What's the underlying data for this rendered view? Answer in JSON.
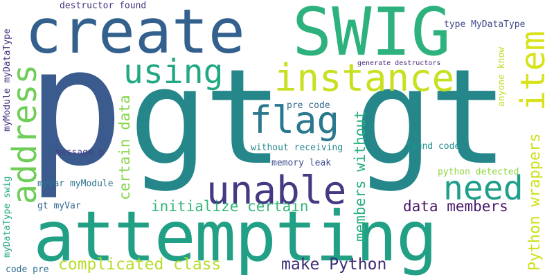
{
  "words": [
    {
      "text": "p",
      "color": "#3b5b8e"
    },
    {
      "text": "gt gt",
      "color": "#25878a"
    },
    {
      "text": "attempting",
      "color": "#21a085"
    },
    {
      "text": "create",
      "color": "#33608d"
    },
    {
      "text": "SWIG",
      "color": "#2db27d"
    },
    {
      "text": "using",
      "color": "#22a884"
    },
    {
      "text": "instance",
      "color": "#c8e020"
    },
    {
      "text": "flag",
      "color": "#2a788e"
    },
    {
      "text": "unable",
      "color": "#443a83"
    },
    {
      "text": "need",
      "color": "#1f9e89"
    },
    {
      "text": "item",
      "color": "#d8e219"
    },
    {
      "text": "address",
      "color": "#6ece58"
    },
    {
      "text": "make Python",
      "color": "#3f2d76"
    },
    {
      "text": "data members",
      "color": "#48186a"
    },
    {
      "text": "complicated class",
      "color": "#b5de2b"
    },
    {
      "text": "initialize certain",
      "color": "#35b779"
    },
    {
      "text": "certain data",
      "color": "#86d549"
    },
    {
      "text": "members without",
      "color": "#29af7f"
    },
    {
      "text": "Python wrappers",
      "color": "#cde11d"
    },
    {
      "text": "destructor found",
      "color": "#46327e"
    },
    {
      "text": "type MyDataType",
      "color": "#3e4989"
    },
    {
      "text": "generate destructors",
      "color": "#472a7a"
    },
    {
      "text": "anyone know",
      "color": "#bddf26"
    },
    {
      "text": "pre code",
      "color": "#31688e"
    },
    {
      "text": "without receiving",
      "color": "#24868e"
    },
    {
      "text": "found code",
      "color": "#20928c"
    },
    {
      "text": "memory leak",
      "color": "#3e4c8a"
    },
    {
      "text": "message p",
      "color": "#423f85"
    },
    {
      "text": "python detected",
      "color": "#8fd744"
    },
    {
      "text": "myVar myModule",
      "color": "#2c738e"
    },
    {
      "text": "gt myVar",
      "color": "#31678e"
    },
    {
      "text": "code pre",
      "color": "#2e6e8e"
    },
    {
      "text": "myModule myDataType",
      "color": "#472f7d"
    },
    {
      "text": "myDataType swig",
      "color": "#22a785"
    }
  ]
}
